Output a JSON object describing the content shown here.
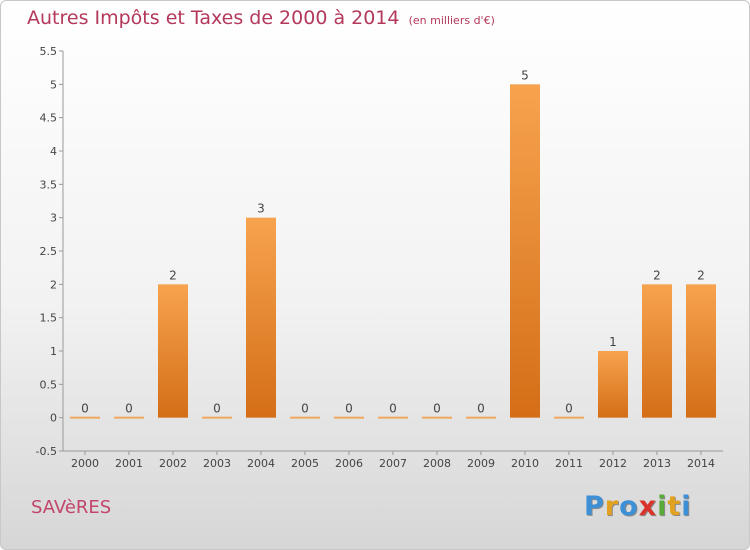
{
  "chart_data": {
    "type": "bar",
    "title": "Autres Impôts et Taxes de 2000 à 2014",
    "subtitle": "(en milliers d'€)",
    "categories": [
      "2000",
      "2001",
      "2002",
      "2003",
      "2004",
      "2005",
      "2006",
      "2007",
      "2008",
      "2009",
      "2010",
      "2011",
      "2012",
      "2013",
      "2014"
    ],
    "values": [
      0,
      0,
      2,
      0,
      3,
      0,
      0,
      0,
      0,
      0,
      5,
      0,
      1,
      2,
      2
    ],
    "data_labels": [
      "0",
      "0",
      "2",
      "0",
      "3",
      "0",
      "0",
      "0",
      "0",
      "0",
      "5",
      "0",
      "1",
      "2",
      "2"
    ],
    "ylim": [
      -0.5,
      5.5
    ],
    "yticks": [
      -0.5,
      0,
      0.5,
      1,
      1.5,
      2,
      2.5,
      3,
      3.5,
      4,
      4.5,
      5,
      5.5
    ],
    "ytick_labels": [
      "-0.5",
      "0",
      "0.5",
      "1",
      "1.5",
      "2",
      "2.5",
      "3",
      "3.5",
      "4",
      "4.5",
      "5",
      "5.5"
    ],
    "grid": false,
    "bar_color": "#e8882e",
    "xlabel": "",
    "ylabel": ""
  },
  "footer": {
    "commune": "SAVèRES",
    "brand_letters": [
      {
        "char": "P",
        "color": "#3d8fd6"
      },
      {
        "char": "r",
        "color": "#e2a21f"
      },
      {
        "char": "o",
        "color": "#3d8fd6"
      },
      {
        "char": "x",
        "color": "#d9342b"
      },
      {
        "char": "i",
        "color": "#5aaa3a"
      },
      {
        "char": "t",
        "color": "#e2a21f"
      },
      {
        "char": "i",
        "color": "#3d8fd6"
      }
    ]
  }
}
